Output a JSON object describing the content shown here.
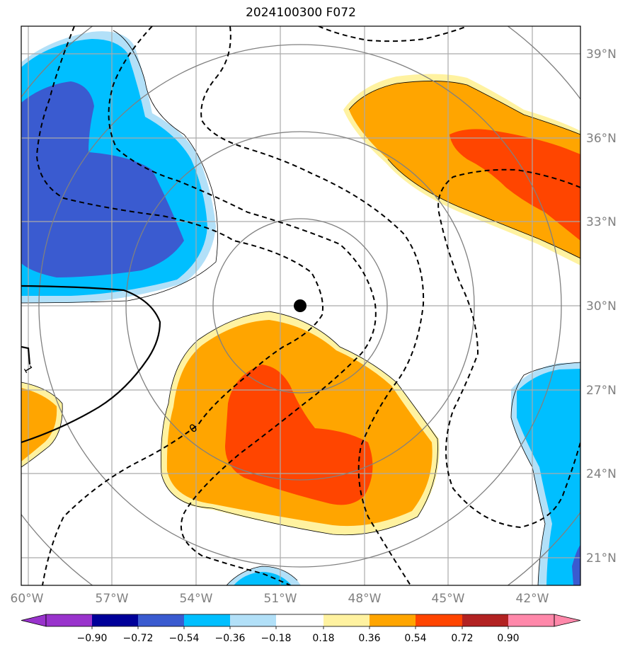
{
  "title": "2024100300 F072",
  "map": {
    "lon_ticks": [
      "60°W",
      "57°W",
      "54°W",
      "51°W",
      "48°W",
      "45°W",
      "42°W"
    ],
    "lat_ticks": [
      "39°N",
      "36°N",
      "33°N",
      "30°N",
      "27°N",
      "24°N",
      "21°N"
    ],
    "storm_center": {
      "lon": -49.9,
      "lat": 30.0
    },
    "contour_labels": [
      "0",
      "1"
    ],
    "range_rings_count": 4,
    "colors": {
      "blue_dark": "#3a5bd0",
      "blue": "#00bfff",
      "blue_light": "#b2e0f8",
      "yellow": "#fff2a0",
      "orange": "#ffa500",
      "red_orange": "#ff4500",
      "grid": "#aaaaaa",
      "ring": "#808080"
    }
  },
  "colorbar": {
    "ticks": [
      "−0.90",
      "−0.72",
      "−0.54",
      "−0.36",
      "−0.18",
      "0.18",
      "0.36",
      "0.54",
      "0.72",
      "0.90"
    ],
    "colors": [
      "#9933cc",
      "#000099",
      "#3a5bd0",
      "#00bfff",
      "#b2e0f8",
      "#ffffff",
      "#fff2a0",
      "#ffa500",
      "#ff4500",
      "#b22222",
      "#ff88aa"
    ]
  }
}
